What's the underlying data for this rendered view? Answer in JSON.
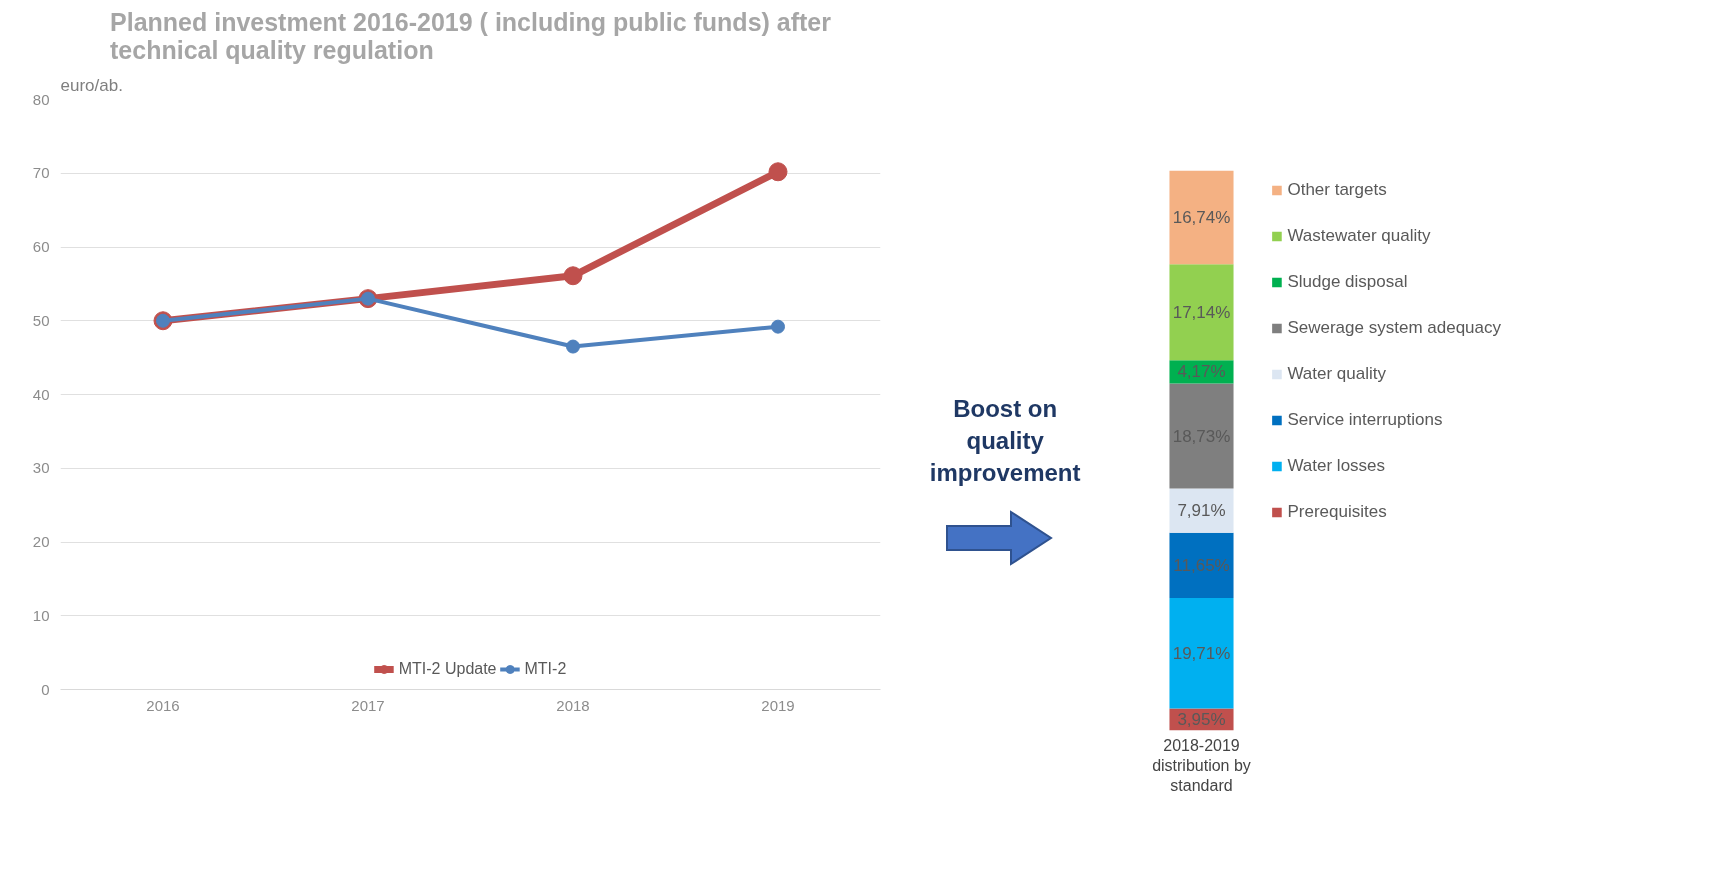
{
  "chart_data": [
    {
      "type": "line",
      "title": "Planned investment 2016-2019 ( including public funds) after technical quality regulation",
      "ylabel": "euro/ab.",
      "x": [
        2016,
        2017,
        2018,
        2019
      ],
      "xticks": [
        2016,
        2017,
        2018,
        2019
      ],
      "xlim": [
        2015.5,
        2019.5
      ],
      "ylim": [
        0,
        80
      ],
      "yticks": [
        0,
        10,
        20,
        30,
        40,
        50,
        60,
        70,
        80
      ],
      "grid": "y",
      "marker": "circle",
      "line_style": "solid",
      "legend": "bottom",
      "series": [
        {
          "name": "MTI-2 Update",
          "color": "#c0504d",
          "values": [
            50,
            53,
            56.1,
            70.2
          ]
        },
        {
          "name": "MTI-2",
          "color": "#4f81bd",
          "values": [
            50,
            53,
            46.5,
            49.2
          ]
        }
      ]
    },
    {
      "type": "bar",
      "stacked": true,
      "categories": [
        null
      ],
      "xlabel": "2018-2019 distribution by standard",
      "legend": "right",
      "annotations": [
        "Boost on quality improvement"
      ],
      "series": [
        {
          "name": "Prerequisites",
          "color": "#c0504d",
          "values": [
            3.95
          ],
          "value_labels": [
            "3,95%"
          ]
        },
        {
          "name": "Water losses",
          "color": "#00b0f0",
          "values": [
            19.71
          ],
          "value_labels": [
            "19,71%"
          ]
        },
        {
          "name": "Service interruptions",
          "color": "#0070c0",
          "values": [
            11.65
          ],
          "value_labels": [
            "11,65%"
          ]
        },
        {
          "name": "Water quality",
          "color": "#dce6f2",
          "values": [
            7.91
          ],
          "value_labels": [
            "7,91%"
          ]
        },
        {
          "name": "Sewerage system adequacy",
          "color": "#7f7f7f",
          "values": [
            18.73
          ],
          "value_labels": [
            "18,73%"
          ]
        },
        {
          "name": "Sludge disposal",
          "color": "#00b050",
          "values": [
            4.17
          ],
          "value_labels": [
            "4,17%"
          ]
        },
        {
          "name": "Wastewater quality",
          "color": "#92d050",
          "values": [
            17.14
          ],
          "value_labels": [
            "17,14%"
          ]
        },
        {
          "name": "Other targets",
          "color": "#f4b183",
          "values": [
            16.74
          ],
          "value_labels": [
            "16,74%"
          ]
        }
      ]
    }
  ]
}
